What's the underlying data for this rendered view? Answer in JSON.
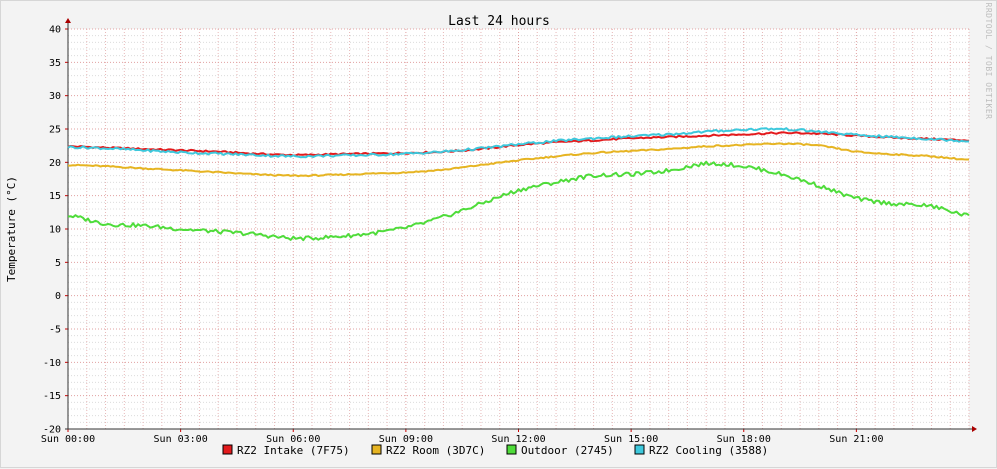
{
  "chart_data": {
    "type": "line",
    "title": "Last 24 hours",
    "ylabel": "Temperature (°C)",
    "watermark": "RRDTOOL / TOBI OETIKER",
    "ylim": [
      -20,
      40
    ],
    "yticks": [
      -20,
      -15,
      -10,
      -5,
      0,
      5,
      10,
      15,
      20,
      25,
      30,
      35,
      40
    ],
    "xlim": [
      0,
      24
    ],
    "x_tick_labels": [
      "Sun 00:00",
      "Sun 03:00",
      "Sun 06:00",
      "Sun 09:00",
      "Sun 12:00",
      "Sun 15:00",
      "Sun 18:00",
      "Sun 21:00"
    ],
    "x_tick_hours": [
      0,
      3,
      6,
      9,
      12,
      15,
      18,
      21
    ],
    "grid": true,
    "legend_position": "bottom",
    "series": [
      {
        "name": "RZ2 Intake (7F75)",
        "color": "#e31a1c",
        "x": [
          0,
          1,
          2,
          3,
          4,
          5,
          6,
          7,
          8,
          9,
          10,
          11,
          12,
          13,
          14,
          15,
          16,
          17,
          18,
          19,
          20,
          21,
          22,
          23,
          24
        ],
        "y": [
          22.4,
          22.2,
          22.0,
          21.8,
          21.6,
          21.3,
          21.1,
          21.2,
          21.3,
          21.4,
          21.6,
          22.0,
          22.6,
          23.0,
          23.3,
          23.6,
          23.8,
          24.0,
          24.2,
          24.4,
          24.3,
          24.0,
          23.7,
          23.5,
          23.3
        ]
      },
      {
        "name": "RZ2 Room (3D7C)",
        "color": "#e6b422",
        "x": [
          0,
          1,
          2,
          3,
          4,
          5,
          6,
          7,
          8,
          9,
          10,
          11,
          12,
          13,
          14,
          15,
          16,
          17,
          18,
          19,
          20,
          21,
          22,
          23,
          24
        ],
        "y": [
          19.6,
          19.4,
          19.1,
          18.8,
          18.5,
          18.2,
          18.0,
          18.1,
          18.3,
          18.5,
          18.9,
          19.6,
          20.3,
          20.9,
          21.4,
          21.7,
          22.0,
          22.4,
          22.6,
          22.8,
          22.5,
          21.6,
          21.2,
          20.9,
          20.4
        ]
      },
      {
        "name": "Outdoor (2745)",
        "color": "#4fdc3a",
        "x": [
          0,
          1,
          2,
          3,
          4,
          5,
          6,
          7,
          8,
          9,
          10,
          11,
          12,
          13,
          14,
          15,
          16,
          17,
          18,
          19,
          20,
          21,
          22,
          23,
          24
        ],
        "y": [
          12.0,
          10.8,
          10.5,
          10.0,
          9.6,
          9.2,
          8.6,
          8.8,
          9.3,
          10.2,
          11.8,
          13.8,
          15.8,
          17.0,
          18.0,
          18.2,
          18.8,
          19.8,
          19.4,
          18.2,
          16.5,
          14.6,
          13.8,
          13.4,
          12.0
        ]
      },
      {
        "name": "RZ2 Cooling (3588)",
        "color": "#3dc8dc",
        "x": [
          0,
          1,
          2,
          3,
          4,
          5,
          6,
          7,
          8,
          9,
          10,
          11,
          12,
          13,
          14,
          15,
          16,
          17,
          18,
          19,
          20,
          21,
          22,
          23,
          24
        ],
        "y": [
          22.3,
          22.1,
          21.8,
          21.5,
          21.3,
          21.1,
          20.9,
          21.0,
          21.1,
          21.3,
          21.6,
          22.1,
          22.7,
          23.2,
          23.6,
          23.9,
          24.2,
          24.6,
          24.9,
          25.0,
          24.6,
          24.1,
          23.8,
          23.5,
          23.2
        ]
      }
    ]
  }
}
